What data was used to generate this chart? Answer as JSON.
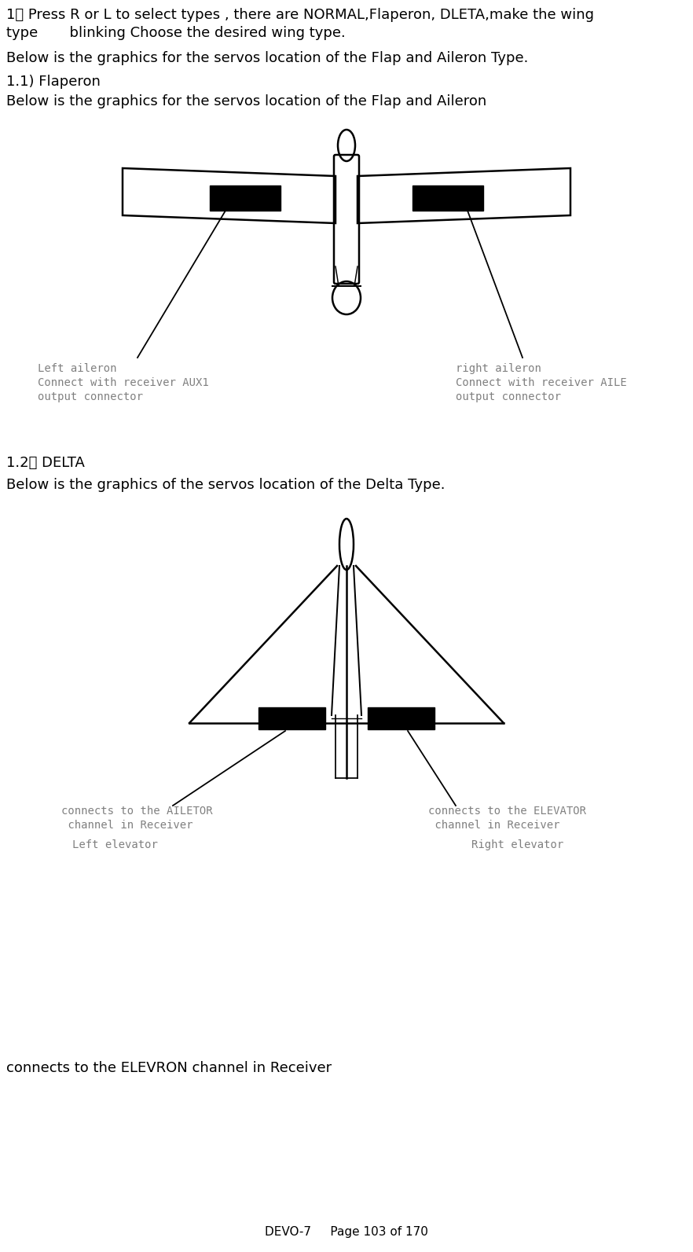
{
  "page_width": 8.82,
  "page_height": 15.93,
  "bg_color": "#ffffff",
  "text_color": "#000000",
  "gray_text": "#808080",
  "line1": "1） Press R or L to select types , there are NORMAL,Flaperon, DLETA,make the wing",
  "line2": "type       blinking Choose the desired wing type.",
  "line3": "Below is the graphics for the servos location of the Flap and Aileron Type.",
  "line4": "1.1) Flaperon",
  "line5": "Below is the graphics for the servos location of the Flap and Aileron",
  "line6": "1.2） DELTA",
  "line7": "Below is the graphics of the servos location of the Delta Type.",
  "line8": "connects to the ELEVRON channel in Receiver",
  "footer": "DEVO-7     Page 103 of 170",
  "fs_body": 13,
  "fs_mono": 10.0,
  "lw": 1.8
}
